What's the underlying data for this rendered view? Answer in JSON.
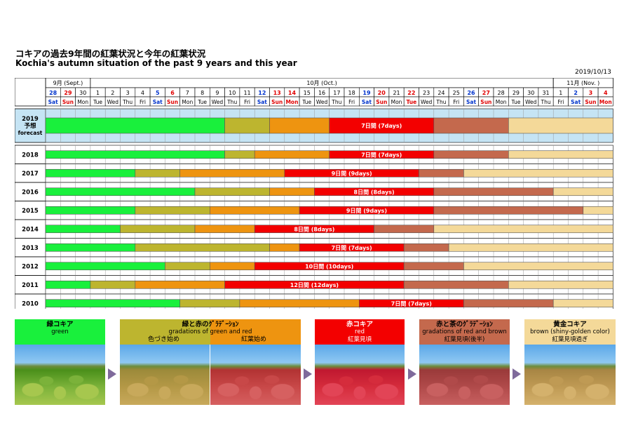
{
  "header": {
    "title_jp": "コキアの過去9年間の紅葉状況と今年の紅葉状況",
    "title_en": "Kochia's autumn situation of the past 9 years and this year",
    "date": "2019/10/13"
  },
  "months": [
    {
      "label": "9月 (Sept.)",
      "start": 0,
      "end": 3
    },
    {
      "label": "10月 (Oct.)",
      "start": 3,
      "end": 34
    },
    {
      "label": "11月 (Nov. )",
      "start": 34,
      "end": 38
    }
  ],
  "days": [
    {
      "d": "28",
      "w": "Sat",
      "t": "sat"
    },
    {
      "d": "29",
      "w": "Sun",
      "t": "sun"
    },
    {
      "d": "30",
      "w": "Mon",
      "t": ""
    },
    {
      "d": "1",
      "w": "Tue",
      "t": ""
    },
    {
      "d": "2",
      "w": "Wed",
      "t": ""
    },
    {
      "d": "3",
      "w": "Thu",
      "t": ""
    },
    {
      "d": "4",
      "w": "Fri",
      "t": ""
    },
    {
      "d": "5",
      "w": "Sat",
      "t": "sat"
    },
    {
      "d": "6",
      "w": "Sun",
      "t": "sun"
    },
    {
      "d": "7",
      "w": "Mon",
      "t": ""
    },
    {
      "d": "8",
      "w": "Tue",
      "t": ""
    },
    {
      "d": "9",
      "w": "Wed",
      "t": ""
    },
    {
      "d": "10",
      "w": "Thu",
      "t": ""
    },
    {
      "d": "11",
      "w": "Fri",
      "t": ""
    },
    {
      "d": "12",
      "w": "Sat",
      "t": "sat"
    },
    {
      "d": "13",
      "w": "Sun",
      "t": "sun"
    },
    {
      "d": "14",
      "w": "Mon",
      "t": "sun"
    },
    {
      "d": "15",
      "w": "Tue",
      "t": ""
    },
    {
      "d": "16",
      "w": "Wed",
      "t": ""
    },
    {
      "d": "17",
      "w": "Thu",
      "t": ""
    },
    {
      "d": "18",
      "w": "Fri",
      "t": ""
    },
    {
      "d": "19",
      "w": "Sat",
      "t": "sat"
    },
    {
      "d": "20",
      "w": "Sun",
      "t": "sun"
    },
    {
      "d": "21",
      "w": "Mon",
      "t": ""
    },
    {
      "d": "22",
      "w": "Tue",
      "t": "sun"
    },
    {
      "d": "23",
      "w": "Wed",
      "t": ""
    },
    {
      "d": "24",
      "w": "Thu",
      "t": ""
    },
    {
      "d": "25",
      "w": "Fri",
      "t": ""
    },
    {
      "d": "26",
      "w": "Sat",
      "t": "sat"
    },
    {
      "d": "27",
      "w": "Sun",
      "t": "sun"
    },
    {
      "d": "28",
      "w": "Mon",
      "t": ""
    },
    {
      "d": "29",
      "w": "Tue",
      "t": ""
    },
    {
      "d": "30",
      "w": "Wed",
      "t": ""
    },
    {
      "d": "31",
      "w": "Thu",
      "t": ""
    },
    {
      "d": "1",
      "w": "Fri",
      "t": ""
    },
    {
      "d": "2",
      "w": "Sat",
      "t": "sat"
    },
    {
      "d": "3",
      "w": "Sun",
      "t": "sun"
    },
    {
      "d": "4",
      "w": "Mon",
      "t": "sun"
    }
  ],
  "colors": {
    "green": "#19f03c",
    "olive": "#bdb52f",
    "orange": "#ee9410",
    "red": "#f30000",
    "brown": "#c4694d",
    "gold": "#f4d999",
    "sat": "#0033cc",
    "sun": "#e00000",
    "forecast_bg": "#c5e4f4"
  },
  "chart_data": {
    "type": "gantt",
    "unit": "day (0 = Sep 28, 37 = Nov 4)",
    "stages": [
      "緑コキア",
      "緑と赤のｸﾞﾗﾃﾞｰｼｮﾝ",
      "赤コキア",
      "赤と茶のｸﾞﾗﾃﾞｰｼｮﾝ",
      "黄金コキア"
    ],
    "rows": [
      {
        "year": "2019",
        "label_lines": [
          "2019",
          "予想",
          "forecast"
        ],
        "forecast": true,
        "segments": [
          {
            "stage": "green",
            "start": 0,
            "end": 12
          },
          {
            "stage": "olive",
            "start": 12,
            "end": 15
          },
          {
            "stage": "orange",
            "start": 15,
            "end": 19
          },
          {
            "stage": "red",
            "start": 19,
            "end": 26,
            "label": "7日間 (7days)"
          },
          {
            "stage": "brown",
            "start": 26,
            "end": 31
          },
          {
            "stage": "gold",
            "start": 31,
            "end": 38
          }
        ]
      },
      {
        "year": "2018",
        "label_lines": [
          "2018"
        ],
        "segments": [
          {
            "stage": "green",
            "start": 0,
            "end": 12
          },
          {
            "stage": "olive",
            "start": 12,
            "end": 14
          },
          {
            "stage": "orange",
            "start": 14,
            "end": 19
          },
          {
            "stage": "red",
            "start": 19,
            "end": 26,
            "label": "7日間 (7days)"
          },
          {
            "stage": "brown",
            "start": 26,
            "end": 31
          },
          {
            "stage": "gold",
            "start": 31,
            "end": 38
          }
        ]
      },
      {
        "year": "2017",
        "label_lines": [
          "2017"
        ],
        "segments": [
          {
            "stage": "green",
            "start": 0,
            "end": 6
          },
          {
            "stage": "olive",
            "start": 6,
            "end": 9
          },
          {
            "stage": "orange",
            "start": 9,
            "end": 16
          },
          {
            "stage": "red",
            "start": 16,
            "end": 25,
            "label": "9日間 (9days)"
          },
          {
            "stage": "brown",
            "start": 25,
            "end": 28
          },
          {
            "stage": "gold",
            "start": 28,
            "end": 38
          }
        ]
      },
      {
        "year": "2016",
        "label_lines": [
          "2016"
        ],
        "segments": [
          {
            "stage": "green",
            "start": 0,
            "end": 10
          },
          {
            "stage": "olive",
            "start": 10,
            "end": 15
          },
          {
            "stage": "orange",
            "start": 15,
            "end": 18
          },
          {
            "stage": "red",
            "start": 18,
            "end": 26,
            "label": "8日間 (8days)"
          },
          {
            "stage": "brown",
            "start": 26,
            "end": 34
          },
          {
            "stage": "gold",
            "start": 34,
            "end": 38
          }
        ]
      },
      {
        "year": "2015",
        "label_lines": [
          "2015"
        ],
        "segments": [
          {
            "stage": "green",
            "start": 0,
            "end": 6
          },
          {
            "stage": "olive",
            "start": 6,
            "end": 11
          },
          {
            "stage": "orange",
            "start": 11,
            "end": 17
          },
          {
            "stage": "red",
            "start": 17,
            "end": 26,
            "label": "9日間 (9days)"
          },
          {
            "stage": "brown",
            "start": 26,
            "end": 36
          },
          {
            "stage": "gold",
            "start": 36,
            "end": 38
          }
        ]
      },
      {
        "year": "2014",
        "label_lines": [
          "2014"
        ],
        "segments": [
          {
            "stage": "green",
            "start": 0,
            "end": 5
          },
          {
            "stage": "olive",
            "start": 5,
            "end": 10
          },
          {
            "stage": "orange",
            "start": 10,
            "end": 14
          },
          {
            "stage": "red",
            "start": 14,
            "end": 22,
            "label": "8日間 (8days)"
          },
          {
            "stage": "brown",
            "start": 22,
            "end": 26
          },
          {
            "stage": "gold",
            "start": 26,
            "end": 38
          }
        ]
      },
      {
        "year": "2013",
        "label_lines": [
          "2013"
        ],
        "segments": [
          {
            "stage": "green",
            "start": 0,
            "end": 6
          },
          {
            "stage": "olive",
            "start": 6,
            "end": 15
          },
          {
            "stage": "orange",
            "start": 15,
            "end": 17
          },
          {
            "stage": "red",
            "start": 17,
            "end": 24,
            "label": "7日間 (7days)"
          },
          {
            "stage": "brown",
            "start": 24,
            "end": 27
          },
          {
            "stage": "gold",
            "start": 27,
            "end": 38
          }
        ]
      },
      {
        "year": "2012",
        "label_lines": [
          "2012"
        ],
        "segments": [
          {
            "stage": "green",
            "start": 0,
            "end": 8
          },
          {
            "stage": "olive",
            "start": 8,
            "end": 11
          },
          {
            "stage": "orange",
            "start": 11,
            "end": 14
          },
          {
            "stage": "red",
            "start": 14,
            "end": 24,
            "label": "10日間 (10days)"
          },
          {
            "stage": "brown",
            "start": 24,
            "end": 28
          },
          {
            "stage": "gold",
            "start": 28,
            "end": 38
          }
        ]
      },
      {
        "year": "2011",
        "label_lines": [
          "2011"
        ],
        "segments": [
          {
            "stage": "green",
            "start": 0,
            "end": 3
          },
          {
            "stage": "olive",
            "start": 3,
            "end": 6
          },
          {
            "stage": "orange",
            "start": 6,
            "end": 12
          },
          {
            "stage": "red",
            "start": 12,
            "end": 24,
            "label": "12日間 (12days)"
          },
          {
            "stage": "brown",
            "start": 24,
            "end": 31
          },
          {
            "stage": "gold",
            "start": 31,
            "end": 38
          }
        ]
      },
      {
        "year": "2010",
        "label_lines": [
          "2010"
        ],
        "segments": [
          {
            "stage": "green",
            "start": 0,
            "end": 9
          },
          {
            "stage": "olive",
            "start": 9,
            "end": 13
          },
          {
            "stage": "orange",
            "start": 13,
            "end": 21
          },
          {
            "stage": "red",
            "start": 21,
            "end": 28,
            "label": "7日間 (7days)"
          },
          {
            "stage": "brown",
            "start": 28,
            "end": 34
          },
          {
            "stage": "gold",
            "start": 34,
            "end": 38
          }
        ]
      }
    ]
  },
  "legend": [
    {
      "id": "green",
      "lines": [
        "緑コキア",
        "green"
      ],
      "color": "#19f03c",
      "text_color": "#000000"
    },
    {
      "id": "gradient-gr",
      "lines": [
        "緑と赤のｸﾞﾗﾃﾞｰｼｮﾝ",
        "gradations of green and red"
      ],
      "color": "#bdb52f",
      "text_color": "#000000",
      "sub": [
        "色づき始め",
        "紅葉始め"
      ]
    },
    {
      "id": "red",
      "lines": [
        "赤コキア",
        "red",
        "紅葉見頃"
      ],
      "color": "#f30000",
      "text_color": "#ffffff"
    },
    {
      "id": "gradient-rb",
      "lines": [
        "赤と茶のｸﾞﾗﾃﾞｰｼｮﾝ",
        "gradations of red and brown",
        "紅葉見頃(後半)"
      ],
      "color": "#c4694d",
      "text_color": "#000000"
    },
    {
      "id": "gold",
      "lines": [
        "黄金コキア",
        "brown (shiny-golden color)",
        "紅葉見頃過ぎ"
      ],
      "color": "#f4d999",
      "text_color": "#000000"
    }
  ]
}
